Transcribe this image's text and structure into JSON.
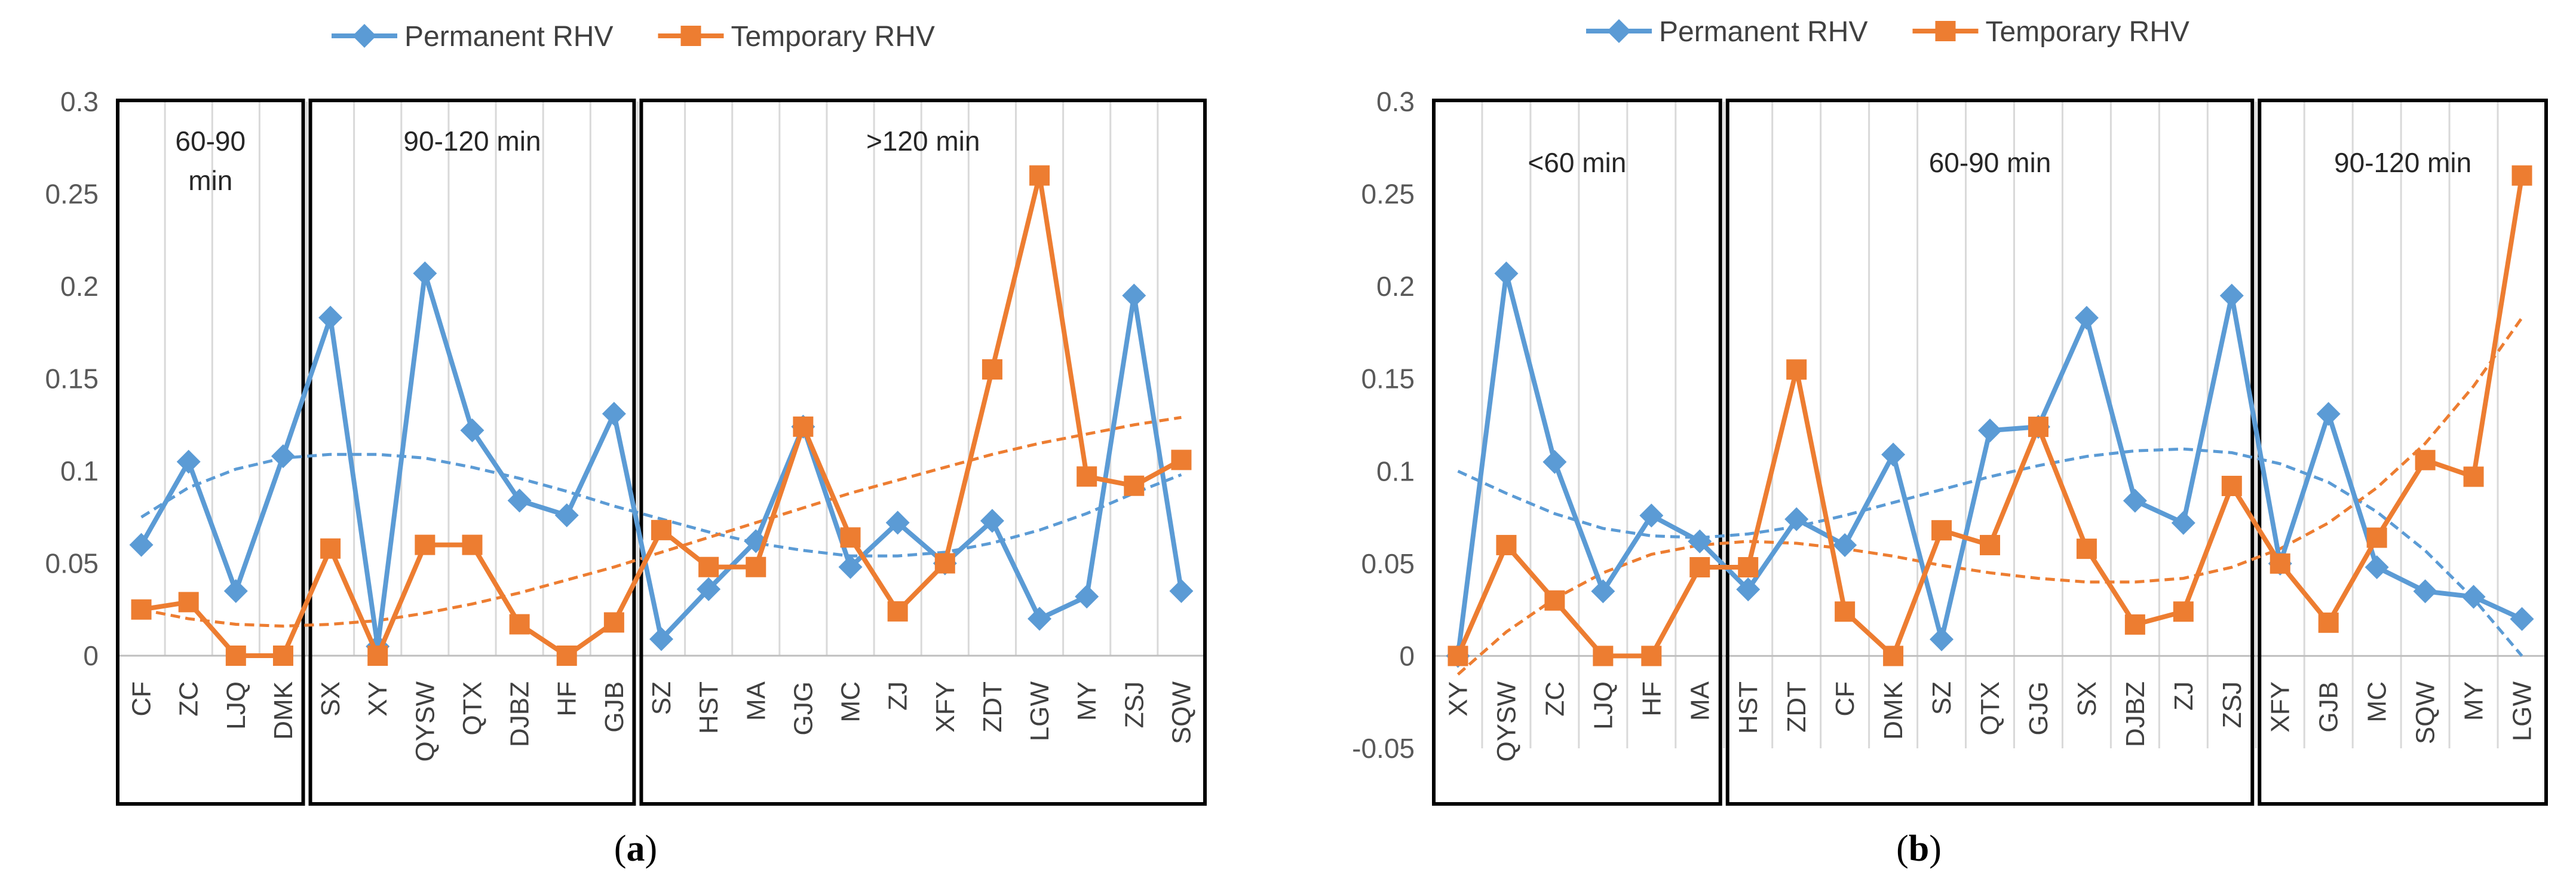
{
  "chart_data": [
    {
      "type": "line",
      "caption_letter": "a",
      "caption_prefix": "(",
      "caption_suffix": ")",
      "legend_position": "top",
      "categories": [
        "CF",
        "ZC",
        "LJQ",
        "DMK",
        "SX",
        "XY",
        "QYSW",
        "QTX",
        "DJBZ",
        "HF",
        "GJB",
        "SZ",
        "HST",
        "MA",
        "GJG",
        "MC",
        "ZJ",
        "XFY",
        "ZDT",
        "LGW",
        "MY",
        "ZSJ",
        "SQW"
      ],
      "series": [
        {
          "name": "Permanent RHV",
          "color": "#5B9BD5",
          "marker": "diamond",
          "values": [
            0.06,
            0.105,
            0.035,
            0.108,
            0.183,
            0.005,
            0.207,
            0.122,
            0.084,
            0.076,
            0.131,
            0.009,
            0.036,
            0.062,
            0.124,
            0.048,
            0.072,
            0.05,
            0.073,
            0.02,
            0.032,
            0.195,
            0.035
          ]
        },
        {
          "name": "Temporary RHV",
          "color": "#ED7D31",
          "marker": "square",
          "values": [
            0.025,
            0.029,
            0.0,
            0.0,
            0.058,
            0.0,
            0.06,
            0.06,
            0.017,
            0.0,
            0.018,
            0.068,
            0.048,
            0.048,
            0.124,
            0.064,
            0.024,
            0.05,
            0.155,
            0.26,
            0.097,
            0.092,
            0.106
          ]
        }
      ],
      "trendlines": [
        {
          "series": "Permanent RHV",
          "type": "polynomial",
          "color": "#5B9BD5",
          "values": [
            0.075,
            0.091,
            0.101,
            0.107,
            0.109,
            0.109,
            0.107,
            0.102,
            0.096,
            0.089,
            0.081,
            0.074,
            0.067,
            0.061,
            0.057,
            0.054,
            0.054,
            0.056,
            0.061,
            0.068,
            0.077,
            0.088,
            0.098
          ]
        },
        {
          "series": "Temporary RHV",
          "type": "polynomial",
          "color": "#ED7D31",
          "values": [
            0.025,
            0.02,
            0.017,
            0.016,
            0.017,
            0.019,
            0.023,
            0.028,
            0.034,
            0.041,
            0.048,
            0.056,
            0.064,
            0.072,
            0.08,
            0.088,
            0.095,
            0.102,
            0.109,
            0.115,
            0.12,
            0.125,
            0.129
          ]
        }
      ],
      "groups": [
        {
          "label_lines": [
            "60-90",
            "min"
          ],
          "start": 0,
          "end": 3
        },
        {
          "label_lines": [
            "90-120 min"
          ],
          "start": 4,
          "end": 10
        },
        {
          "label_lines": [
            ">120 min"
          ],
          "start": 11,
          "end": 22
        }
      ],
      "ylim": [
        0,
        0.3
      ],
      "yticks": [
        0,
        0.05,
        0.1,
        0.15,
        0.2,
        0.25,
        0.3
      ],
      "ytick_labels": [
        "0",
        "0.05",
        "0.1",
        "0.15",
        "0.2",
        "0.25",
        "0.3"
      ],
      "grid": "vertical",
      "title": "",
      "xlabel": "",
      "ylabel": ""
    },
    {
      "type": "line",
      "caption_letter": "b",
      "caption_prefix": "(",
      "caption_suffix": ")",
      "legend_position": "top",
      "categories": [
        "XY",
        "QYSW",
        "ZC",
        "LJQ",
        "HF",
        "MA",
        "HST",
        "ZDT",
        "CF",
        "DMK",
        "SZ",
        "QTX",
        "GJG",
        "SX",
        "DJBZ",
        "ZJ",
        "ZSJ",
        "XFY",
        "GJB",
        "MC",
        "SQW",
        "MY",
        "LGW"
      ],
      "series": [
        {
          "name": "Permanent RHV",
          "color": "#5B9BD5",
          "marker": "diamond",
          "values": [
            0.0,
            0.207,
            0.105,
            0.035,
            0.076,
            0.062,
            0.036,
            0.074,
            0.06,
            0.109,
            0.009,
            0.122,
            0.124,
            0.183,
            0.084,
            0.072,
            0.195,
            0.05,
            0.131,
            0.048,
            0.035,
            0.032,
            0.02
          ]
        },
        {
          "name": "Temporary RHV",
          "color": "#ED7D31",
          "marker": "square",
          "values": [
            0.0,
            0.06,
            0.03,
            0.0,
            0.0,
            0.048,
            0.048,
            0.155,
            0.024,
            0.0,
            0.068,
            0.06,
            0.124,
            0.058,
            0.017,
            0.024,
            0.092,
            0.05,
            0.018,
            0.064,
            0.106,
            0.097,
            0.26
          ]
        }
      ],
      "trendlines": [
        {
          "series": "Permanent RHV",
          "type": "polynomial",
          "color": "#5B9BD5",
          "values": [
            0.1,
            0.088,
            0.077,
            0.069,
            0.065,
            0.064,
            0.066,
            0.07,
            0.076,
            0.083,
            0.09,
            0.097,
            0.103,
            0.108,
            0.111,
            0.112,
            0.11,
            0.104,
            0.094,
            0.078,
            0.057,
            0.031,
            0.0
          ]
        },
        {
          "series": "Temporary RHV",
          "type": "polynomial",
          "color": "#ED7D31",
          "values": [
            -0.01,
            0.013,
            0.031,
            0.045,
            0.055,
            0.06,
            0.062,
            0.061,
            0.058,
            0.054,
            0.049,
            0.045,
            0.042,
            0.04,
            0.04,
            0.042,
            0.048,
            0.058,
            0.072,
            0.091,
            0.115,
            0.146,
            0.183
          ]
        }
      ],
      "groups": [
        {
          "label_lines": [
            "<60 min"
          ],
          "start": 0,
          "end": 5
        },
        {
          "label_lines": [
            "60-90 min"
          ],
          "start": 6,
          "end": 16
        },
        {
          "label_lines": [
            "90-120 min"
          ],
          "start": 17,
          "end": 22
        }
      ],
      "ylim": [
        -0.05,
        0.3
      ],
      "yticks": [
        -0.05,
        0,
        0.05,
        0.1,
        0.15,
        0.2,
        0.25,
        0.3
      ],
      "ytick_labels": [
        "-0.05",
        "0",
        "0.05",
        "0.1",
        "0.15",
        "0.2",
        "0.25",
        "0.3"
      ],
      "grid": "vertical",
      "title": "",
      "xlabel": "",
      "ylabel": ""
    }
  ]
}
